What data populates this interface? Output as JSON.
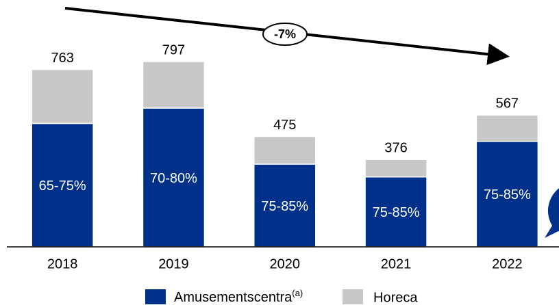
{
  "chart_data": {
    "type": "stacked_bar",
    "categories": [
      "2018",
      "2019",
      "2020",
      "2021",
      "2022"
    ],
    "series": [
      {
        "name": "Amusementscentra",
        "name_note": "(a)",
        "color": "#00318a",
        "values": [
          531,
          597,
          356,
          301,
          454
        ],
        "share_labels": [
          "65-75%",
          "70-80%",
          "75-85%",
          "75-85%",
          "75-85%"
        ]
      },
      {
        "name": "Horeca",
        "color": "#c8c8c8",
        "values": [
          232,
          200,
          119,
          75,
          113
        ]
      }
    ],
    "totals": [
      763,
      797,
      475,
      376,
      567
    ],
    "trend_label": "-7%",
    "ylim": [
      0,
      900
    ]
  }
}
